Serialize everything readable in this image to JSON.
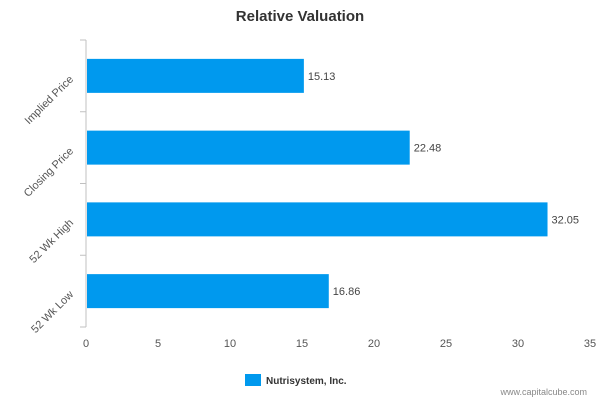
{
  "chart_data": {
    "type": "bar",
    "orientation": "horizontal",
    "title": "Relative Valuation",
    "xlabel": "",
    "ylabel": "",
    "categories": [
      "Implied Price",
      "Closing Price",
      "52 Wk High",
      "52 Wk Low"
    ],
    "series": [
      {
        "name": "Nutrisystem, Inc.",
        "values": [
          15.13,
          22.48,
          32.05,
          16.86
        ],
        "color": "#0099ee"
      }
    ],
    "xlim": [
      0,
      35
    ],
    "xticks": [
      0,
      5,
      10,
      15,
      20,
      25,
      30,
      35
    ],
    "data_labels": [
      "15.13",
      "22.48",
      "32.05",
      "16.86"
    ],
    "grid": false,
    "legend_position": "bottom-center"
  },
  "footer": {
    "credit": "www.capitalcube.com"
  }
}
